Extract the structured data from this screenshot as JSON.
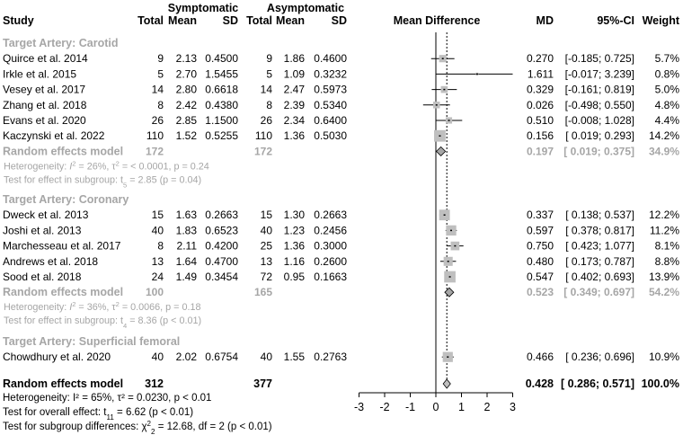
{
  "headers": {
    "group_symptomatic": "Symptomatic",
    "group_asymptomatic": "Asymptomatic",
    "study": "Study",
    "total": "Total",
    "mean": "Mean",
    "sd": "SD",
    "mean_difference": "Mean Difference",
    "md": "MD",
    "ci": "95%-CI",
    "weight": "Weight"
  },
  "colors": {
    "text": "#000000",
    "subgroup_gray": "#a6a6a6",
    "box_gray": "#bfbfbf",
    "line": "#000000"
  },
  "chart_data": {
    "type": "forest",
    "title": "",
    "xlabel": "",
    "ylabel": "",
    "xlim": [
      -3,
      3
    ],
    "xticks": [
      "-3",
      "-2",
      "-1",
      "0",
      "1",
      "2",
      "3"
    ],
    "null_line": 0,
    "overall_line": 0.428,
    "subgroups": [
      {
        "label": "Target Artery: Carotid",
        "studies": [
          {
            "study": "Quirce et al. 2014",
            "n1": "9",
            "mean1": "2.13",
            "sd1": "0.4500",
            "n2": "9",
            "mean2": "1.86",
            "sd2": "0.4600",
            "md": 0.27,
            "lo": -0.185,
            "hi": 0.725,
            "md_text": "0.270",
            "ci_text": "[-0.185; 0.725]",
            "weight": "5.7%",
            "w": 5.7
          },
          {
            "study": "Irkle et al. 2015",
            "n1": "5",
            "mean1": "2.70",
            "sd1": "1.5455",
            "n2": "5",
            "mean2": "1.09",
            "sd2": "0.3232",
            "md": 1.611,
            "lo": -0.017,
            "hi": 3.239,
            "md_text": "1.611",
            "ci_text": "[-0.017; 3.239]",
            "weight": "0.8%",
            "w": 0.8
          },
          {
            "study": "Vesey et al. 2017",
            "n1": "14",
            "mean1": "2.80",
            "sd1": "0.6618",
            "n2": "14",
            "mean2": "2.47",
            "sd2": "0.5973",
            "md": 0.329,
            "lo": -0.161,
            "hi": 0.819,
            "md_text": "0.329",
            "ci_text": "[-0.161; 0.819]",
            "weight": "5.0%",
            "w": 5.0
          },
          {
            "study": "Zhang et al. 2018",
            "n1": "8",
            "mean1": "2.42",
            "sd1": "0.4380",
            "n2": "8",
            "mean2": "2.39",
            "sd2": "0.5340",
            "md": 0.026,
            "lo": -0.498,
            "hi": 0.55,
            "md_text": "0.026",
            "ci_text": "[-0.498; 0.550]",
            "weight": "4.8%",
            "w": 4.8
          },
          {
            "study": "Evans et al. 2020",
            "n1": "26",
            "mean1": "2.85",
            "sd1": "1.1500",
            "n2": "26",
            "mean2": "2.34",
            "sd2": "0.6400",
            "md": 0.51,
            "lo": -0.008,
            "hi": 1.028,
            "md_text": "0.510",
            "ci_text": "[-0.008; 1.028]",
            "weight": "4.4%",
            "w": 4.4
          },
          {
            "study": "Kaczynski et al. 2022",
            "n1": "110",
            "mean1": "1.52",
            "sd1": "0.5255",
            "n2": "110",
            "mean2": "1.36",
            "sd2": "0.5030",
            "md": 0.156,
            "lo": 0.019,
            "hi": 0.293,
            "md_text": "0.156",
            "ci_text": "[ 0.019; 0.293]",
            "weight": "14.2%",
            "w": 14.2
          }
        ],
        "pooled": {
          "label": "Random effects model",
          "n1": "172",
          "n2": "172",
          "md": 0.197,
          "lo": 0.019,
          "hi": 0.375,
          "md_text": "0.197",
          "ci_text": "[ 0.019; 0.375]",
          "weight": "34.9%"
        },
        "het_pre": "Heterogeneity: ",
        "het_stat": "I",
        "het_sup": "2",
        "het_post": " = 26%, τ",
        "het_tau_sup": "2",
        "het_rest": " = < 0.0001, p = 0.24",
        "test_pre": "Test for effect in subgroup: t",
        "test_sub": "5",
        "test_rest": " = 2.85 (p = 0.04)"
      },
      {
        "label": "Target Artery: Coronary",
        "studies": [
          {
            "study": "Dweck et al. 2013",
            "n1": "15",
            "mean1": "1.63",
            "sd1": "0.2663",
            "n2": "15",
            "mean2": "1.30",
            "sd2": "0.2663",
            "md": 0.337,
            "lo": 0.138,
            "hi": 0.537,
            "md_text": "0.337",
            "ci_text": "[ 0.138; 0.537]",
            "weight": "12.2%",
            "w": 12.2
          },
          {
            "study": "Joshi et al. 2013",
            "n1": "40",
            "mean1": "1.83",
            "sd1": "0.6523",
            "n2": "40",
            "mean2": "1.23",
            "sd2": "0.2456",
            "md": 0.597,
            "lo": 0.378,
            "hi": 0.817,
            "md_text": "0.597",
            "ci_text": "[ 0.378; 0.817]",
            "weight": "11.2%",
            "w": 11.2
          },
          {
            "study": "Marchesseau et al. 2017",
            "n1": "8",
            "mean1": "2.11",
            "sd1": "0.4200",
            "n2": "25",
            "mean2": "1.36",
            "sd2": "0.3000",
            "md": 0.75,
            "lo": 0.423,
            "hi": 1.077,
            "md_text": "0.750",
            "ci_text": "[ 0.423; 1.077]",
            "weight": "8.1%",
            "w": 8.1
          },
          {
            "study": "Andrews et al. 2018",
            "n1": "13",
            "mean1": "1.64",
            "sd1": "0.4700",
            "n2": "13",
            "mean2": "1.16",
            "sd2": "0.2600",
            "md": 0.48,
            "lo": 0.173,
            "hi": 0.787,
            "md_text": "0.480",
            "ci_text": "[ 0.173; 0.787]",
            "weight": "8.8%",
            "w": 8.8
          },
          {
            "study": "Sood et al. 2018",
            "n1": "24",
            "mean1": "1.49",
            "sd1": "0.3454",
            "n2": "72",
            "mean2": "0.95",
            "sd2": "0.1663",
            "md": 0.547,
            "lo": 0.402,
            "hi": 0.693,
            "md_text": "0.547",
            "ci_text": "[ 0.402; 0.693]",
            "weight": "13.9%",
            "w": 13.9
          }
        ],
        "pooled": {
          "label": "Random effects model",
          "n1": "100",
          "n2": "165",
          "md": 0.523,
          "lo": 0.349,
          "hi": 0.697,
          "md_text": "0.523",
          "ci_text": "[ 0.349; 0.697]",
          "weight": "54.2%"
        },
        "het_pre": "Heterogeneity: ",
        "het_stat": "I",
        "het_sup": "2",
        "het_post": " = 36%, τ",
        "het_tau_sup": "2",
        "het_rest": " = 0.0066, p = 0.18",
        "test_pre": "Test for effect in subgroup: t",
        "test_sub": "4",
        "test_rest": " = 8.36 (p < 0.01)"
      },
      {
        "label": "Target Artery: Superficial femoral",
        "studies": [
          {
            "study": "Chowdhury et al. 2020",
            "n1": "40",
            "mean1": "2.02",
            "sd1": "0.6754",
            "n2": "40",
            "mean2": "1.55",
            "sd2": "0.2763",
            "md": 0.466,
            "lo": 0.236,
            "hi": 0.696,
            "md_text": "0.466",
            "ci_text": "[ 0.236; 0.696]",
            "weight": "10.9%",
            "w": 10.9
          }
        ]
      }
    ],
    "overall": {
      "label": "Random effects model",
      "n1": "312",
      "n2": "377",
      "md": 0.428,
      "lo": 0.286,
      "hi": 0.571,
      "md_text": "0.428",
      "ci_text": "[ 0.286; 0.571]",
      "weight": "100.0%",
      "het_text": "Heterogeneity: I² = 65%, τ² = 0.0230, p < 0.01",
      "effect_pre": "Test for overall effect: t",
      "effect_sub": "11",
      "effect_rest": " = 6.62 (p < 0.01)",
      "subgroup_pre": "Test for subgroup differences: χ",
      "subgroup_sup": "2",
      "subgroup_sub": "2",
      "subgroup_rest": " = 12.68, df = 2 (p < 0.01)"
    }
  }
}
